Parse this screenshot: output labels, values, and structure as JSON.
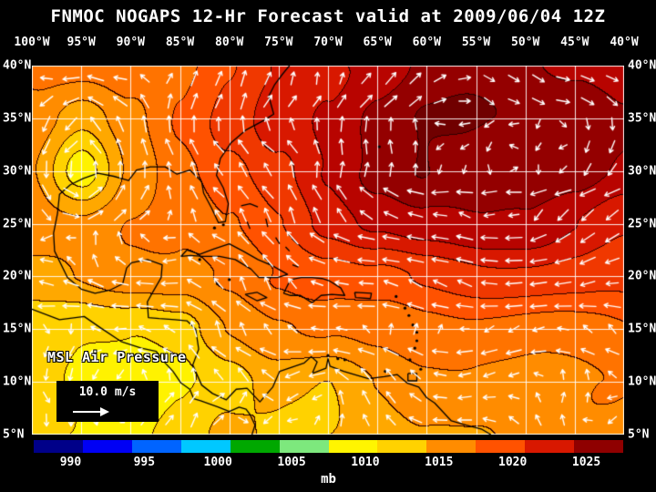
{
  "title": "FNMOC NOGAPS 12-Hr Forecast valid at 2009/06/04 12Z",
  "map": {
    "lon_labels": [
      "100°W",
      "95°W",
      "90°W",
      "85°W",
      "80°W",
      "75°W",
      "70°W",
      "65°W",
      "60°W",
      "55°W",
      "50°W",
      "45°W",
      "40°W"
    ],
    "lat_labels": [
      "40°N",
      "35°N",
      "30°N",
      "25°N",
      "20°N",
      "15°N",
      "10°N",
      "5°N"
    ],
    "overlay_label": "MSL Air Pressure",
    "wind_scale_label": "10.0 m/s"
  },
  "colorbar": {
    "unit": "mb",
    "tick_labels": [
      "990",
      "995",
      "1000",
      "1005",
      "1010",
      "1015",
      "1020",
      "1025"
    ],
    "tick_values": [
      990,
      995,
      1000,
      1005,
      1010,
      1015,
      1020,
      1025
    ],
    "range_mb": [
      987.5,
      1027.5
    ],
    "segment_colors": [
      "#000089",
      "#0000f5",
      "#0064ff",
      "#00c8ff",
      "#00a800",
      "#7de87d",
      "#fff500",
      "#ffd200",
      "#ff8c00",
      "#ff5200",
      "#d81800",
      "#8f0000"
    ]
  },
  "chart_data": {
    "type": "heatmap",
    "title": "FNMOC NOGAPS 12-Hr Forecast valid at 2009/06/04 12Z",
    "model": "FNMOC NOGAPS",
    "forecast_hour": 12,
    "valid_time": "2009/06/04 12Z",
    "variable": "MSL Air Pressure",
    "unit": "mb",
    "lon_range_deg": [
      -100,
      -40
    ],
    "lat_range_deg": [
      5,
      40
    ],
    "lon_grid": [
      -100,
      -95,
      -90,
      -85,
      -80,
      -75,
      -70,
      -65,
      -60,
      -55,
      -50,
      -45,
      -40
    ],
    "lat_grid": [
      40,
      35,
      30,
      25,
      20,
      15,
      10,
      5
    ],
    "pressure_mb": [
      [
        1014,
        1014,
        1015,
        1016,
        1018,
        1020,
        1022,
        1023,
        1024,
        1024.5,
        1024.5,
        1024,
        1023
      ],
      [
        1013,
        1010.5,
        1013.5,
        1016,
        1018,
        1021,
        1023,
        1025,
        1026,
        1026.3,
        1026,
        1025,
        1023.5
      ],
      [
        1012,
        1007.5,
        1013,
        1015,
        1017,
        1019.5,
        1022,
        1024,
        1026,
        1026.5,
        1026,
        1025,
        1023.5
      ],
      [
        1013,
        1012.5,
        1013.8,
        1014.5,
        1016.5,
        1018.5,
        1020.5,
        1022,
        1023.3,
        1023.8,
        1023.3,
        1022,
        1021
      ],
      [
        1012,
        1012,
        1012.5,
        1013,
        1014.5,
        1016,
        1017,
        1018,
        1019,
        1019.2,
        1019,
        1019,
        1018.5
      ],
      [
        1009,
        1008,
        1008.5,
        1009.5,
        1012,
        1013,
        1014,
        1014.8,
        1015.5,
        1015.6,
        1015.6,
        1015.6,
        1015.6
      ],
      [
        1008,
        1007,
        1007,
        1008,
        1009,
        1011,
        1010.5,
        1012,
        1012.8,
        1013.2,
        1013.6,
        1013.8,
        1014
      ],
      [
        1009,
        1008,
        1007.5,
        1008,
        1010,
        1010,
        1010.5,
        1011,
        1011.8,
        1012.2,
        1012.6,
        1013,
        1013
      ]
    ],
    "features": {
      "subtropical_high_center": {
        "lon": -55,
        "lat": 31,
        "pressure_mb": 1026.5
      },
      "inland_low": {
        "lon": -95,
        "lat": 30,
        "pressure_mb": 1007.5
      },
      "central_america_low": {
        "pressure_mb": 1007
      }
    },
    "wind": {
      "pattern": "clockwise anticyclonic flow around Atlantic subtropical high; easterly trade winds south of 20N",
      "reference_speed_label": "10.0 m/s"
    },
    "band_start_mb": 1004,
    "band_step_mb": 2,
    "band_colors": [
      "#ffff8c",
      "#fff200",
      "#ffd200",
      "#ffa800",
      "#ff8c00",
      "#ff7300",
      "#ff5200",
      "#f03800",
      "#d81800",
      "#b80400",
      "#940000",
      "#700000"
    ],
    "contour_color": "#2d0000",
    "coastlines": [
      [
        [
          -73.9,
          40
        ],
        [
          -74.6,
          39.2
        ],
        [
          -75.4,
          38.2
        ],
        [
          -76.0,
          37.1
        ],
        [
          -75.5,
          35.4
        ],
        [
          -76.5,
          34.8
        ],
        [
          -78.3,
          33.9
        ],
        [
          -79.8,
          32.7
        ],
        [
          -80.9,
          31.2
        ],
        [
          -81.3,
          29.6
        ],
        [
          -80.6,
          28.4
        ],
        [
          -80.1,
          26.9
        ],
        [
          -80.4,
          25.2
        ],
        [
          -81.1,
          25.1
        ],
        [
          -81.8,
          26.5
        ],
        [
          -82.6,
          27.9
        ],
        [
          -82.8,
          29.0
        ],
        [
          -84.0,
          30.1
        ],
        [
          -85.3,
          29.7
        ],
        [
          -86.5,
          30.4
        ],
        [
          -88.0,
          30.4
        ],
        [
          -89.4,
          30.1
        ],
        [
          -90.2,
          29.1
        ],
        [
          -91.7,
          29.5
        ],
        [
          -93.3,
          29.8
        ],
        [
          -94.8,
          29.3
        ],
        [
          -96.1,
          28.7
        ],
        [
          -97.2,
          27.8
        ],
        [
          -97.4,
          26.0
        ],
        [
          -97.8,
          24.1
        ],
        [
          -97.7,
          22.4
        ],
        [
          -96.4,
          19.9
        ],
        [
          -95.0,
          18.8
        ],
        [
          -93.6,
          18.4
        ],
        [
          -92.1,
          18.7
        ],
        [
          -90.8,
          19.3
        ],
        [
          -90.4,
          20.8
        ],
        [
          -89.9,
          21.3
        ],
        [
          -88.3,
          21.6
        ],
        [
          -86.8,
          21.1
        ],
        [
          -86.9,
          19.9
        ],
        [
          -87.7,
          18.6
        ],
        [
          -88.3,
          17.6
        ],
        [
          -88.2,
          16.1
        ],
        [
          -87.1,
          16.0
        ],
        [
          -85.5,
          15.9
        ],
        [
          -84.3,
          15.8
        ],
        [
          -83.4,
          15.0
        ],
        [
          -83.1,
          13.1
        ],
        [
          -83.7,
          11.6
        ],
        [
          -82.8,
          9.7
        ],
        [
          -81.7,
          8.9
        ],
        [
          -80.3,
          8.3
        ],
        [
          -79.3,
          9.3
        ],
        [
          -78.2,
          9.4
        ],
        [
          -77.2,
          8.4
        ],
        [
          -76.9,
          8.1
        ],
        [
          -75.6,
          9.5
        ],
        [
          -74.9,
          11.0
        ],
        [
          -72.4,
          11.8
        ],
        [
          -71.7,
          12.4
        ],
        [
          -71.1,
          11.9
        ],
        [
          -71.6,
          10.8
        ],
        [
          -70.2,
          11.3
        ],
        [
          -70.0,
          12.2
        ],
        [
          -69.8,
          11.5
        ],
        [
          -68.4,
          11.0
        ],
        [
          -67.0,
          10.6
        ],
        [
          -65.9,
          10.3
        ],
        [
          -64.3,
          10.5
        ],
        [
          -63.0,
          10.7
        ],
        [
          -62.0,
          9.9
        ],
        [
          -60.8,
          9.5
        ],
        [
          -60.0,
          8.5
        ],
        [
          -59.2,
          8.0
        ],
        [
          -57.5,
          6.3
        ],
        [
          -56.0,
          5.9
        ],
        [
          -54.4,
          5.5
        ],
        [
          -53.5,
          5.0
        ]
      ],
      [
        [
          -100,
          16.9
        ],
        [
          -97.2,
          15.9
        ],
        [
          -94.7,
          16.2
        ],
        [
          -93.0,
          15.1
        ],
        [
          -90.9,
          13.8
        ],
        [
          -88.9,
          13.2
        ],
        [
          -87.4,
          12.9
        ],
        [
          -86.6,
          11.9
        ],
        [
          -85.7,
          11.0
        ],
        [
          -84.9,
          9.9
        ],
        [
          -84.0,
          9.3
        ],
        [
          -83.6,
          8.4
        ],
        [
          -82.9,
          8.2
        ],
        [
          -81.1,
          7.6
        ],
        [
          -80.0,
          7.2
        ],
        [
          -79.0,
          7.6
        ],
        [
          -78.3,
          7.4
        ],
        [
          -77.9,
          6.9
        ],
        [
          -77.4,
          5.9
        ],
        [
          -77.7,
          5.0
        ]
      ],
      [
        [
          -84.9,
          21.9
        ],
        [
          -84.3,
          22.5
        ],
        [
          -83.0,
          22.1
        ],
        [
          -81.6,
          22.6
        ],
        [
          -80.0,
          23.1
        ],
        [
          -78.6,
          22.4
        ],
        [
          -77.1,
          21.6
        ],
        [
          -75.6,
          21.0
        ],
        [
          -74.1,
          20.2
        ],
        [
          -75.1,
          19.9
        ],
        [
          -77.0,
          19.9
        ],
        [
          -77.8,
          20.7
        ],
        [
          -79.4,
          21.6
        ],
        [
          -81.0,
          21.9
        ],
        [
          -82.7,
          21.9
        ],
        [
          -83.9,
          22.0
        ],
        [
          -84.9,
          21.9
        ]
      ],
      [
        [
          -74.5,
          18.4
        ],
        [
          -73.8,
          19.7
        ],
        [
          -72.7,
          19.9
        ],
        [
          -71.6,
          19.9
        ],
        [
          -70.6,
          19.8
        ],
        [
          -69.9,
          19.6
        ],
        [
          -68.7,
          18.9
        ],
        [
          -68.3,
          18.2
        ],
        [
          -69.6,
          18.3
        ],
        [
          -70.7,
          18.2
        ],
        [
          -71.6,
          17.5
        ],
        [
          -72.8,
          18.2
        ],
        [
          -73.8,
          18.2
        ],
        [
          -74.5,
          18.4
        ]
      ],
      [
        [
          -78.4,
          18.3
        ],
        [
          -77.2,
          18.5
        ],
        [
          -76.2,
          18.0
        ],
        [
          -77.2,
          17.7
        ],
        [
          -78.4,
          18.3
        ]
      ],
      [
        [
          -67.3,
          18.5
        ],
        [
          -65.6,
          18.4
        ],
        [
          -65.7,
          17.9
        ],
        [
          -67.2,
          18.0
        ],
        [
          -67.3,
          18.5
        ]
      ],
      [
        [
          -61.9,
          10.8
        ],
        [
          -61.0,
          10.8
        ],
        [
          -61.0,
          10.1
        ],
        [
          -61.9,
          10.1
        ],
        [
          -61.9,
          10.8
        ]
      ],
      [
        [
          -78.8,
          26.7
        ],
        [
          -77.9,
          26.9
        ],
        [
          -77.1,
          26.6
        ]
      ],
      [
        [
          -78.2,
          25.2
        ],
        [
          -77.9,
          24.5
        ]
      ],
      [
        [
          -76.3,
          25.5
        ],
        [
          -76.1,
          24.7
        ]
      ],
      [
        [
          -75.3,
          23.7
        ],
        [
          -74.9,
          23.1
        ]
      ],
      [
        [
          -74.3,
          22.8
        ],
        [
          -73.9,
          22.4
        ]
      ],
      [
        [
          -73.6,
          21.1
        ],
        [
          -73.0,
          20.9
        ]
      ],
      [
        [
          -71.9,
          21.9
        ],
        [
          -71.6,
          21.7
        ]
      ]
    ],
    "island_dots": [
      [
        -64.8,
        32.3
      ],
      [
        -63.1,
        18.1
      ],
      [
        -62.2,
        17.0
      ],
      [
        -61.8,
        16.3
      ],
      [
        -61.4,
        15.4
      ],
      [
        -61.0,
        14.7
      ],
      [
        -61.0,
        13.9
      ],
      [
        -61.2,
        13.2
      ],
      [
        -61.7,
        12.1
      ],
      [
        -60.6,
        11.2
      ],
      [
        -64.2,
        11.0
      ],
      [
        -69.0,
        12.2
      ],
      [
        -70.0,
        12.5
      ],
      [
        -68.3,
        12.1
      ],
      [
        -81.5,
        24.6
      ],
      [
        -80.6,
        24.9
      ],
      [
        -81.2,
        19.3
      ],
      [
        -80.0,
        19.7
      ],
      [
        -83.0,
        21.6
      ]
    ]
  }
}
